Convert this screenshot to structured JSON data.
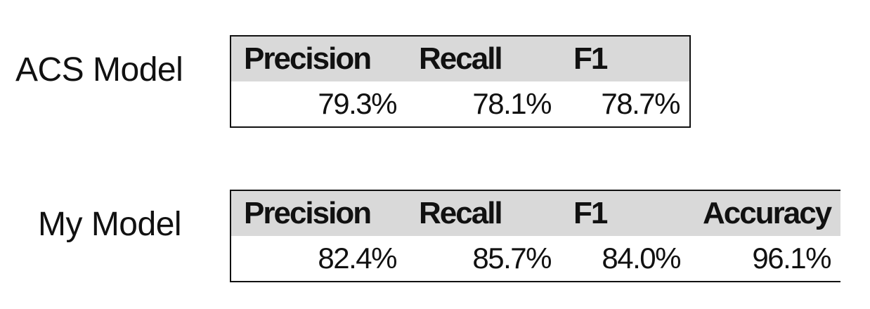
{
  "chart_data": {
    "type": "table",
    "tables": [
      {
        "model": "ACS Model",
        "columns": [
          "Precision",
          "Recall",
          "F1"
        ],
        "values": [
          "79.3%",
          "78.1%",
          "78.7%"
        ]
      },
      {
        "model": "My Model",
        "columns": [
          "Precision",
          "Recall",
          "F1",
          "Accuracy"
        ],
        "values": [
          "82.4%",
          "85.7%",
          "84.0%",
          "96.1%"
        ]
      }
    ],
    "colors": {
      "header_background": "#d9d9d9",
      "border": "#111111",
      "text": "#111111"
    }
  }
}
